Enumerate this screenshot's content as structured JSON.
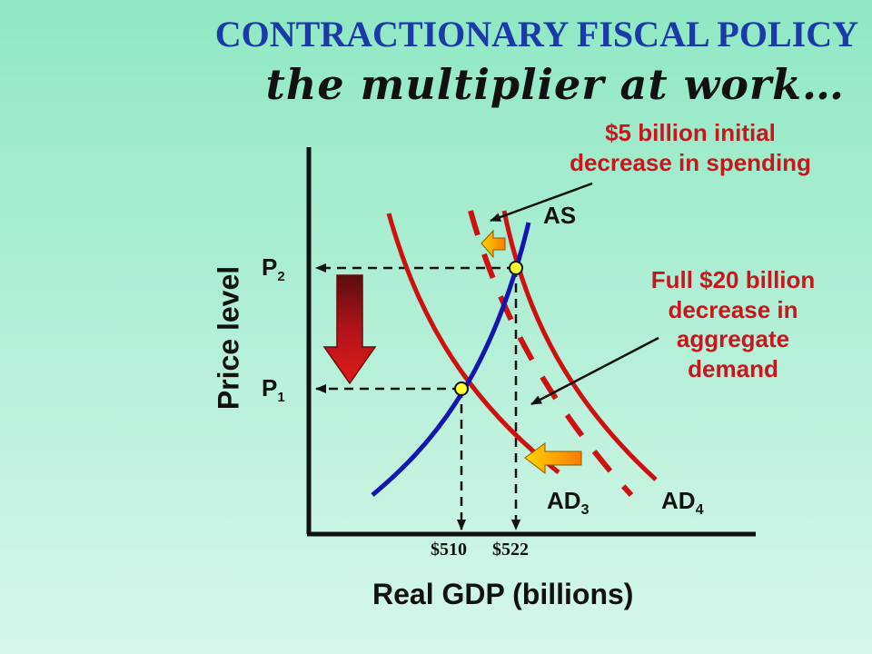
{
  "title": "CONTRACTIONARY FISCAL POLICY",
  "subtitle": "the multiplier at work…",
  "annotations": {
    "initial_decrease": [
      "$5 billion initial",
      "decrease in spending"
    ],
    "full_decrease": [
      "Full $20 billion",
      "decrease in",
      "aggregate",
      "demand"
    ]
  },
  "axes": {
    "y_label": "Price level",
    "x_label": "Real GDP (billions)"
  },
  "price_levels": {
    "p2": {
      "base": "P",
      "sub": "2"
    },
    "p1": {
      "base": "P",
      "sub": "1"
    }
  },
  "gdp_ticks": [
    "$510",
    "$522"
  ],
  "curves": {
    "as": "AS",
    "ad3": {
      "base": "AD",
      "sub": "3"
    },
    "ad4": {
      "base": "AD",
      "sub": "4"
    }
  },
  "colors": {
    "title": "#1a3aa8",
    "annotation": "#c8161d",
    "as_curve": "#1515b0",
    "ad_curve": "#cc1111",
    "point": "#ffff33"
  }
}
